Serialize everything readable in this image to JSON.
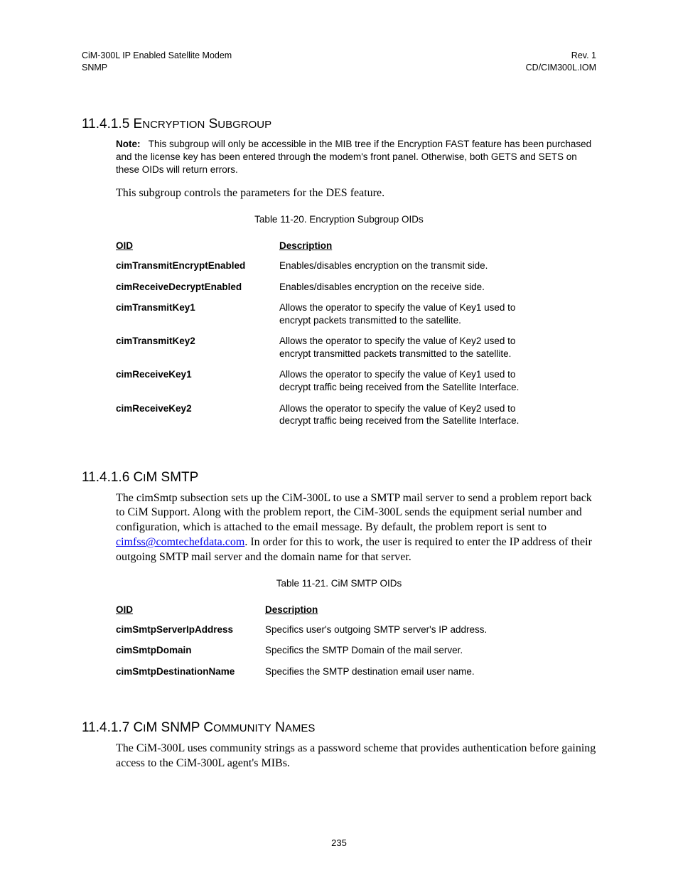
{
  "header": {
    "left_line1": "CiM-300L IP Enabled Satellite Modem",
    "left_line2": "SNMP",
    "right_line1": "Rev. 1",
    "right_line2": "CD/CIM300L.IOM"
  },
  "section1": {
    "number": "11.4.1.5",
    "title_pre": "E",
    "title_rest": "NCRYPTION",
    "title_pre2": "S",
    "title_rest2": "UBGROUP",
    "note_label": "Note:",
    "note_text": "This subgroup will only be accessible in the MIB tree if the Encryption FAST feature has been purchased and the license key has been entered through the modem's front panel. Otherwise, both GETS and SETS on these OIDs will return errors.",
    "body": "This subgroup controls the parameters for the DES feature.",
    "table_caption": "Table 11-20.  Encryption Subgroup OIDs",
    "col1": "OID",
    "col2": "Description",
    "rows": [
      {
        "oid": "cimTransmitEncryptEnabled",
        "desc": "Enables/disables encryption on the transmit side."
      },
      {
        "oid": "cimReceiveDecryptEnabled",
        "desc": "Enables/disables encryption on the receive side."
      },
      {
        "oid": "cimTransmitKey1",
        "desc": "Allows the operator to specify the value of Key1 used to encrypt packets transmitted to the satellite."
      },
      {
        "oid": "cimTransmitKey2",
        "desc": "Allows the operator to specify the value of Key2 used to encrypt transmitted packets transmitted to the satellite."
      },
      {
        "oid": "cimReceiveKey1",
        "desc": "Allows the operator to specify the value of Key1 used to decrypt traffic being received from the Satellite Interface."
      },
      {
        "oid": "cimReceiveKey2",
        "desc": "Allows the operator to specify the value of Key2 used to decrypt traffic being received from the Satellite Interface."
      }
    ],
    "table1_col_widths": {
      "oid": 230,
      "desc": 400
    }
  },
  "section2": {
    "number": "11.4.1.6",
    "title_pre": "C",
    "title_mid": "I",
    "title_rest": "M SMTP",
    "body_pre": "The cimSmtp subsection sets up the CiM-300L to use a SMTP mail server to send a problem report back to CiM Support.  Along with the problem report, the CiM-300L sends the  equipment serial number and configuration, which is attached to the email message. By default, the problem report is sent to ",
    "link_text": "cimfss@comtechefdata.com",
    "body_post": ". In order for this to work, the user is required to enter the IP address of their outgoing SMTP mail server and the domain name for that server.",
    "table_caption": "Table 11-21.  CiM SMTP OIDs",
    "col1": "OID",
    "col2": "Description",
    "rows": [
      {
        "oid": "cimSmtpServerIpAddress",
        "desc": "Specifics user's outgoing SMTP server's IP address."
      },
      {
        "oid": "cimSmtpDomain",
        "desc": "Specifics the SMTP Domain of the mail server."
      },
      {
        "oid": "cimSmtpDestinationName",
        "desc": "Specifies the SMTP destination email user name."
      }
    ],
    "table2_col_widths": {
      "oid": 210,
      "desc": 420
    }
  },
  "section3": {
    "number": "11.4.1.7",
    "title_pre": "C",
    "title_mid": "I",
    "title_rest": "M SNMP C",
    "title_rest2": "OMMUNITY",
    "title_pre3": "N",
    "title_rest3": "AMES",
    "body": "The CiM-300L uses community strings as a password scheme that provides authentication before gaining access to the CiM-300L agent's MIBs."
  },
  "page_number": "235",
  "colors": {
    "text": "#000000",
    "link": "#0000ee",
    "background": "#ffffff"
  },
  "fonts": {
    "sans": "Arial, Helvetica, sans-serif",
    "serif": "Times New Roman, Times, serif",
    "heading_size_pt": 14,
    "body_serif_size_pt": 12,
    "table_size_pt": 10
  }
}
